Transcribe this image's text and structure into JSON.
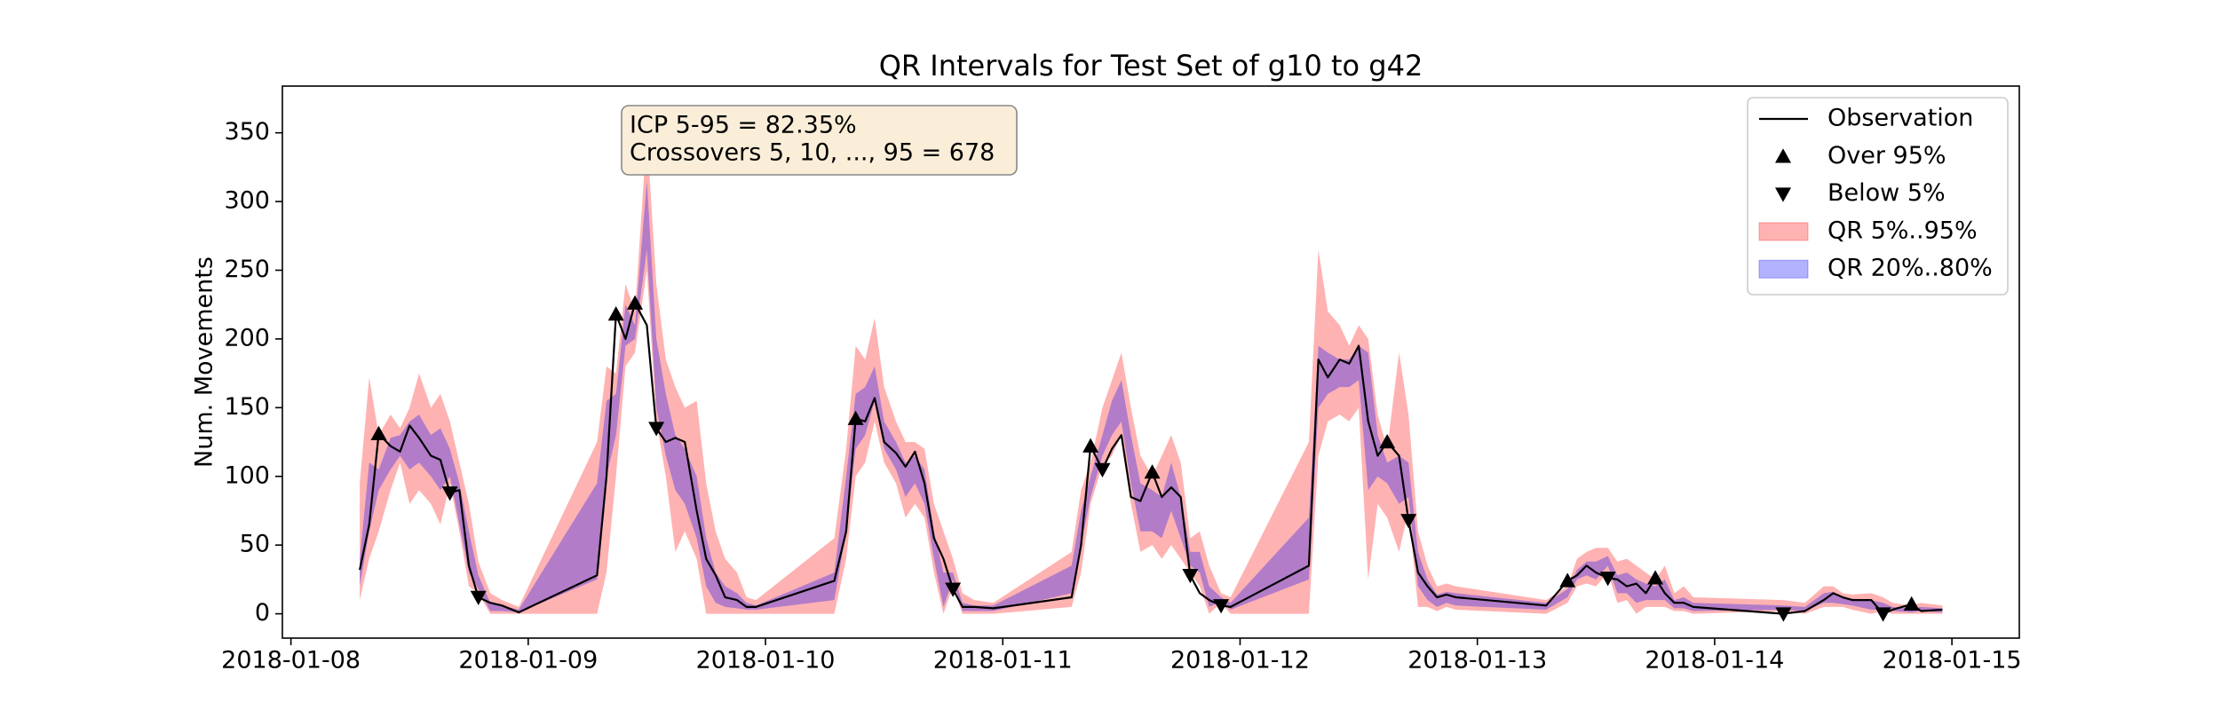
{
  "chart_data": {
    "type": "line",
    "title": "QR Intervals for Test Set of g10 to g42",
    "ylabel": "Num. Movements",
    "annotation": [
      "ICP 5-95 = 82.35%",
      "Crossovers 5, 10, ..., 95 = 678"
    ],
    "legend": "upper right",
    "xlim": [
      736701.964,
      736709.284
    ],
    "xticks": [
      {
        "value": 736702,
        "label": "2018-01-08"
      },
      {
        "value": 736703,
        "label": "2018-01-09"
      },
      {
        "value": 736704,
        "label": "2018-01-10"
      },
      {
        "value": 736705,
        "label": "2018-01-11"
      },
      {
        "value": 736706,
        "label": "2018-01-12"
      },
      {
        "value": 736707,
        "label": "2018-01-13"
      },
      {
        "value": 736708,
        "label": "2018-01-14"
      },
      {
        "value": 736709,
        "label": "2018-01-15"
      }
    ],
    "ylim": [
      -17.7,
      384
    ],
    "yticks": [
      0,
      50,
      100,
      150,
      200,
      250,
      300,
      350
    ],
    "x": [
      736702.29,
      736702.33,
      736702.37,
      736702.42,
      736702.46,
      736702.5,
      736702.54,
      736702.59,
      736702.63,
      736702.67,
      736702.71,
      736702.75,
      736702.79,
      736702.84,
      736702.89,
      736702.96,
      736703.29,
      736703.33,
      736703.37,
      736703.41,
      736703.45,
      736703.5,
      736703.54,
      736703.58,
      736703.62,
      736703.66,
      736703.71,
      736703.75,
      736703.79,
      736703.83,
      736703.88,
      736703.92,
      736703.96,
      736704.29,
      736704.34,
      736704.38,
      736704.42,
      736704.46,
      736704.5,
      736704.55,
      736704.59,
      736704.63,
      736704.67,
      736704.71,
      736704.75,
      736704.79,
      736704.83,
      736704.88,
      736704.96,
      736705.29,
      736705.33,
      736705.37,
      736705.42,
      736705.46,
      736705.5,
      736705.54,
      736705.58,
      736705.63,
      736705.67,
      736705.71,
      736705.75,
      736705.79,
      736705.83,
      736705.87,
      736705.92,
      736705.96,
      736706.29,
      736706.33,
      736706.37,
      736706.42,
      736706.46,
      736706.5,
      736706.54,
      736706.58,
      736706.62,
      736706.67,
      736706.71,
      736706.75,
      736706.79,
      736706.83,
      736706.87,
      736706.91,
      736707.29,
      736707.38,
      736707.42,
      736707.46,
      736707.5,
      736707.55,
      736707.59,
      736707.63,
      736707.67,
      736707.71,
      736707.75,
      736707.79,
      736707.83,
      736707.87,
      736707.91,
      736708.29,
      736708.38,
      736708.46,
      736708.5,
      736708.54,
      736708.58,
      736708.66,
      736708.71,
      736708.75,
      736708.83,
      736708.87,
      736708.96
    ],
    "series": [
      {
        "name": "Observation",
        "type": "line",
        "color": "#000000",
        "values": [
          32,
          65,
          131,
          122,
          118,
          137,
          128,
          115,
          112,
          88,
          90,
          35,
          12,
          8,
          6,
          1,
          28,
          100,
          218,
          200,
          226,
          210,
          135,
          125,
          128,
          125,
          75,
          40,
          28,
          12,
          10,
          5,
          5,
          24,
          60,
          142,
          140,
          157,
          125,
          117,
          107,
          118,
          95,
          55,
          40,
          18,
          5,
          5,
          4,
          12,
          50,
          122,
          105,
          120,
          130,
          85,
          82,
          103,
          85,
          92,
          85,
          28,
          15,
          10,
          6,
          5,
          35,
          185,
          172,
          185,
          182,
          195,
          140,
          115,
          125,
          115,
          68,
          30,
          20,
          12,
          14,
          12,
          6,
          24,
          28,
          35,
          30,
          26,
          25,
          20,
          22,
          15,
          26,
          15,
          8,
          8,
          5,
          0,
          2,
          10,
          15,
          12,
          10,
          10,
          0,
          3,
          7,
          2,
          3
        ]
      },
      {
        "name": "Over 95%",
        "type": "marker",
        "marker": "triangle-up",
        "color": "#000000",
        "values": [
          null,
          null,
          131,
          null,
          null,
          null,
          null,
          null,
          null,
          null,
          null,
          null,
          null,
          null,
          null,
          null,
          null,
          null,
          218,
          null,
          226,
          null,
          null,
          null,
          null,
          null,
          null,
          null,
          null,
          null,
          null,
          null,
          null,
          null,
          null,
          142,
          null,
          null,
          null,
          null,
          null,
          null,
          null,
          null,
          null,
          null,
          null,
          null,
          null,
          null,
          null,
          122,
          null,
          null,
          null,
          null,
          null,
          103,
          null,
          null,
          null,
          null,
          null,
          null,
          null,
          null,
          null,
          null,
          null,
          null,
          null,
          null,
          null,
          null,
          125,
          null,
          null,
          null,
          null,
          null,
          null,
          null,
          null,
          24,
          null,
          null,
          null,
          null,
          null,
          null,
          null,
          null,
          26,
          null,
          null,
          null,
          null,
          null,
          null,
          null,
          null,
          null,
          null,
          null,
          null,
          null,
          7,
          null,
          null
        ]
      },
      {
        "name": "Below 5%",
        "type": "marker",
        "marker": "triangle-down",
        "color": "#000000",
        "values": [
          null,
          null,
          null,
          null,
          null,
          null,
          null,
          null,
          null,
          88,
          null,
          null,
          12,
          null,
          null,
          null,
          null,
          null,
          null,
          null,
          null,
          null,
          135,
          null,
          null,
          null,
          null,
          null,
          null,
          null,
          null,
          null,
          null,
          null,
          null,
          null,
          null,
          null,
          null,
          null,
          null,
          null,
          null,
          null,
          null,
          18,
          null,
          null,
          null,
          null,
          null,
          null,
          105,
          null,
          null,
          null,
          null,
          null,
          null,
          null,
          null,
          28,
          null,
          null,
          6,
          null,
          null,
          null,
          null,
          null,
          null,
          null,
          null,
          null,
          null,
          null,
          68,
          null,
          null,
          null,
          null,
          null,
          null,
          null,
          null,
          null,
          null,
          26,
          null,
          null,
          null,
          null,
          null,
          null,
          null,
          null,
          null,
          0,
          null,
          null,
          null,
          null,
          null,
          null,
          0,
          null,
          null,
          null,
          null
        ]
      },
      {
        "name": "QR 5%..95%",
        "type": "band",
        "color": "#ff0000",
        "opacity": 0.3,
        "lower": [
          10,
          40,
          60,
          90,
          110,
          80,
          90,
          80,
          65,
          95,
          60,
          20,
          15,
          0,
          0,
          0,
          0,
          30,
          100,
          180,
          190,
          250,
          140,
          100,
          45,
          60,
          40,
          0,
          0,
          0,
          0,
          0,
          0,
          0,
          40,
          100,
          110,
          140,
          110,
          95,
          70,
          80,
          70,
          30,
          0,
          20,
          0,
          0,
          0,
          5,
          30,
          80,
          108,
          115,
          130,
          80,
          45,
          50,
          40,
          50,
          40,
          30,
          20,
          0,
          8,
          0,
          0,
          115,
          140,
          145,
          140,
          150,
          25,
          80,
          70,
          45,
          75,
          5,
          5,
          2,
          5,
          3,
          0,
          8,
          20,
          22,
          20,
          30,
          8,
          10,
          0,
          5,
          5,
          5,
          2,
          2,
          0,
          2,
          0,
          5,
          5,
          5,
          3,
          0,
          2,
          0,
          0,
          0,
          0
        ],
        "upper": [
          95,
          172,
          130,
          145,
          135,
          150,
          175,
          150,
          160,
          140,
          110,
          80,
          38,
          15,
          10,
          5,
          125,
          180,
          175,
          240,
          220,
          350,
          240,
          185,
          165,
          150,
          155,
          95,
          60,
          40,
          30,
          12,
          10,
          55,
          120,
          195,
          185,
          215,
          165,
          140,
          125,
          125,
          120,
          80,
          60,
          40,
          15,
          10,
          8,
          45,
          90,
          110,
          150,
          170,
          190,
          150,
          115,
          100,
          115,
          130,
          110,
          55,
          60,
          35,
          15,
          12,
          125,
          265,
          220,
          210,
          195,
          210,
          200,
          145,
          120,
          190,
          145,
          60,
          35,
          20,
          22,
          20,
          10,
          20,
          40,
          45,
          48,
          48,
          38,
          40,
          35,
          30,
          25,
          35,
          15,
          20,
          12,
          10,
          8,
          20,
          20,
          15,
          14,
          15,
          12,
          8,
          6,
          8,
          6
        ]
      },
      {
        "name": "QR 20%..80%",
        "type": "band",
        "color": "#0000ff",
        "opacity": 0.3,
        "lower": [
          20,
          60,
          90,
          105,
          115,
          105,
          110,
          100,
          90,
          100,
          65,
          30,
          18,
          2,
          2,
          1,
          25,
          100,
          130,
          195,
          200,
          265,
          150,
          115,
          90,
          80,
          55,
          20,
          8,
          5,
          4,
          3,
          3,
          10,
          60,
          120,
          130,
          155,
          120,
          105,
          85,
          95,
          80,
          40,
          5,
          25,
          2,
          2,
          2,
          15,
          50,
          85,
          115,
          130,
          140,
          95,
          60,
          60,
          55,
          75,
          55,
          35,
          30,
          5,
          9,
          3,
          25,
          150,
          160,
          165,
          165,
          170,
          90,
          100,
          95,
          80,
          85,
          20,
          10,
          5,
          8,
          6,
          3,
          12,
          25,
          28,
          25,
          35,
          15,
          15,
          8,
          10,
          10,
          10,
          4,
          4,
          2,
          3,
          2,
          8,
          8,
          7,
          6,
          3,
          3,
          2,
          1,
          2,
          1
        ],
        "upper": [
          40,
          110,
          105,
          128,
          130,
          140,
          145,
          130,
          135,
          120,
          95,
          60,
          28,
          8,
          6,
          3,
          95,
          155,
          160,
          225,
          210,
          315,
          200,
          160,
          130,
          120,
          100,
          55,
          30,
          20,
          15,
          8,
          6,
          30,
          100,
          160,
          165,
          180,
          140,
          125,
          110,
          115,
          105,
          60,
          30,
          30,
          8,
          6,
          6,
          35,
          75,
          100,
          130,
          155,
          170,
          130,
          95,
          90,
          85,
          110,
          85,
          45,
          45,
          20,
          12,
          8,
          70,
          195,
          190,
          185,
          185,
          195,
          190,
          130,
          110,
          115,
          110,
          45,
          25,
          14,
          16,
          15,
          8,
          18,
          32,
          38,
          38,
          42,
          28,
          30,
          25,
          22,
          20,
          25,
          10,
          12,
          8,
          6,
          5,
          15,
          16,
          12,
          11,
          10,
          8,
          5,
          4,
          5,
          4
        ]
      }
    ]
  }
}
